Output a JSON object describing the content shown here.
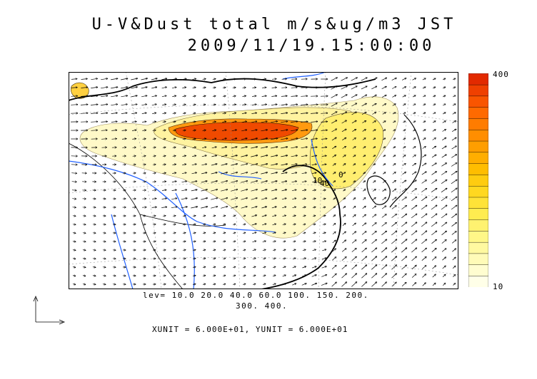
{
  "title_line1": "U-V&Dust total m/s&ug/m3 JST",
  "title_line2": "2009/11/19.15:00:00",
  "colorbar": {
    "max_label": "400",
    "min_label": "10",
    "colors": [
      "#ffffe8",
      "#fffdd0",
      "#fffbb8",
      "#fff9a0",
      "#fff788",
      "#fff270",
      "#ffec50",
      "#ffe338",
      "#ffd820",
      "#ffcc10",
      "#ffbd00",
      "#ffae00",
      "#ff9e00",
      "#ff8e00",
      "#ff7c00",
      "#ff6a00",
      "#f95500",
      "#ef4000",
      "#e22a00"
    ]
  },
  "levels_line1": "lev= 10.0 20.0 40.0 60.0 100. 150. 200.",
  "levels_line2": "300. 400.",
  "unit_line": "XUNIT = 6.000E+01, YUNIT = 6.000E+01",
  "contour_labels": [
    "10",
    "40",
    "0"
  ],
  "colors": {
    "river": "#2060ff",
    "coast": "#000000",
    "dust_peak": "#f04a00",
    "dust_low": "#fff6b8"
  }
}
